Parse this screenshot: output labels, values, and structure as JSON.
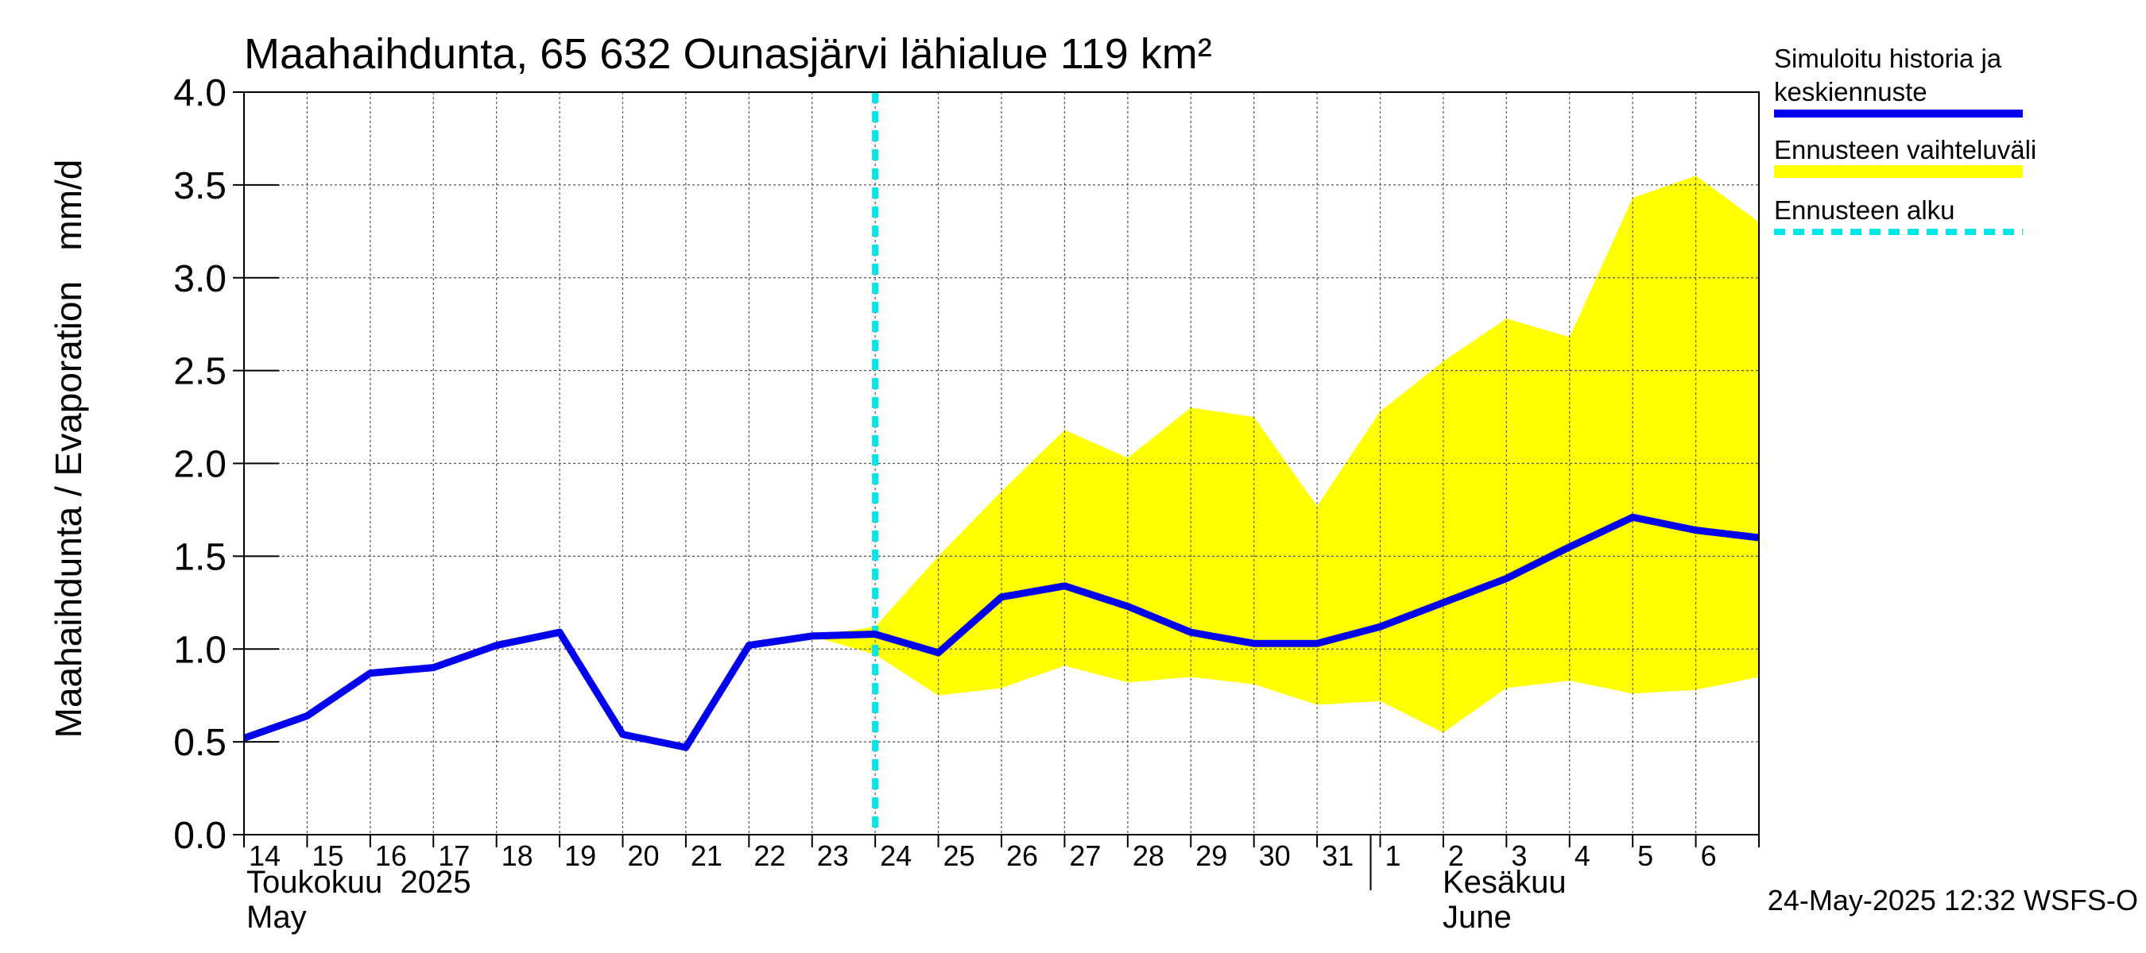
{
  "chart_data": {
    "type": "line",
    "title": "Maahaihdunta, 65 632 Ounasjärvi lähialue 119 km²",
    "ylabel": "Maahaihdunta / Evaporation   mm/d",
    "ylim": [
      0.0,
      4.0
    ],
    "yticks": [
      "0.0",
      "0.5",
      "1.0",
      "1.5",
      "2.0",
      "2.5",
      "3.0",
      "3.5",
      "4.0"
    ],
    "x_range_days": [
      0,
      24
    ],
    "day_labels": [
      {
        "day": 0,
        "label": "14"
      },
      {
        "day": 1,
        "label": "15"
      },
      {
        "day": 2,
        "label": "16"
      },
      {
        "day": 3,
        "label": "17"
      },
      {
        "day": 4,
        "label": "18"
      },
      {
        "day": 5,
        "label": "19"
      },
      {
        "day": 6,
        "label": "20"
      },
      {
        "day": 7,
        "label": "21"
      },
      {
        "day": 8,
        "label": "22"
      },
      {
        "day": 9,
        "label": "23"
      },
      {
        "day": 10,
        "label": "24"
      },
      {
        "day": 11,
        "label": "25"
      },
      {
        "day": 12,
        "label": "26"
      },
      {
        "day": 13,
        "label": "27"
      },
      {
        "day": 14,
        "label": "28"
      },
      {
        "day": 15,
        "label": "29"
      },
      {
        "day": 16,
        "label": "30"
      },
      {
        "day": 17,
        "label": "31"
      },
      {
        "day": 18,
        "label": "1"
      },
      {
        "day": 19,
        "label": "2"
      },
      {
        "day": 20,
        "label": "3"
      },
      {
        "day": 21,
        "label": "4"
      },
      {
        "day": 22,
        "label": "5"
      },
      {
        "day": 23,
        "label": "6"
      }
    ],
    "month_labels": {
      "may_fi": "Toukokuu  2025",
      "may_en": "May",
      "june_fi": "Kesäkuu",
      "june_en": "June",
      "june_start_day": 18
    },
    "forecast_start_day": 10,
    "series": [
      {
        "name": "Simuloitu historia ja keskiennuste",
        "color": "#0000ee",
        "x": [
          0,
          1,
          2,
          3,
          4,
          5,
          6,
          7,
          8,
          9,
          10,
          11,
          12,
          13,
          14,
          15,
          16,
          17,
          18,
          19,
          20,
          21,
          22,
          23,
          24
        ],
        "y": [
          0.52,
          0.64,
          0.87,
          0.9,
          1.02,
          1.09,
          0.54,
          0.47,
          1.02,
          1.07,
          1.08,
          0.98,
          1.28,
          1.34,
          1.23,
          1.09,
          1.03,
          1.03,
          1.12,
          1.25,
          1.38,
          1.55,
          1.71,
          1.64,
          1.6
        ]
      }
    ],
    "band": {
      "name": "Ennusteen vaihteluväli",
      "color": "#ffff00",
      "x": [
        9,
        10,
        11,
        12,
        13,
        14,
        15,
        16,
        17,
        18,
        19,
        20,
        21,
        22,
        23,
        24
      ],
      "upper": [
        1.07,
        1.12,
        1.5,
        1.85,
        2.18,
        2.03,
        2.3,
        2.25,
        1.77,
        2.28,
        2.55,
        2.78,
        2.68,
        3.43,
        3.55,
        3.3
      ],
      "lower": [
        1.07,
        0.97,
        0.75,
        0.79,
        0.91,
        0.82,
        0.85,
        0.81,
        0.7,
        0.72,
        0.55,
        0.79,
        0.83,
        0.76,
        0.78,
        0.85
      ]
    },
    "legend": {
      "position": "top-right, outside plot",
      "entries": [
        {
          "label_line1": "Simuloitu historia ja",
          "label_line2": "keskiennuste",
          "color": "#0000ee",
          "style": "solid"
        },
        {
          "label_line1": "Ennusteen vaihteluväli",
          "label_line2": "",
          "color": "#ffff00",
          "style": "solid"
        },
        {
          "label_line1": "Ennusteen alku",
          "label_line2": "",
          "color": "#00e5e5",
          "style": "dashed"
        }
      ]
    },
    "footer": "24-May-2025 12:32 WSFS-O"
  }
}
